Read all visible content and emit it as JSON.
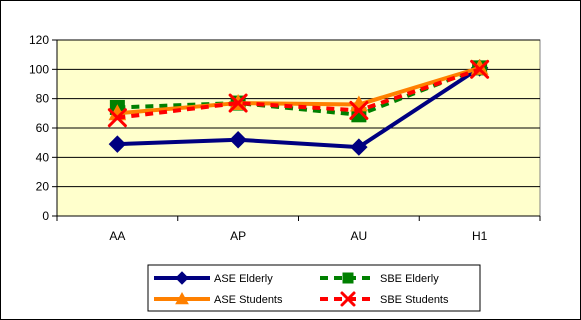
{
  "chart_data": {
    "type": "line",
    "title": "",
    "xlabel": "",
    "ylabel": "",
    "categories": [
      "AA",
      "AP",
      "AU",
      "H1"
    ],
    "ylim": [
      0,
      120
    ],
    "yticks": [
      0,
      20,
      40,
      60,
      80,
      100,
      120
    ],
    "grid": true,
    "legend_position": "bottom",
    "plot_background": "#ffffcc",
    "series": [
      {
        "name": "ASE Elderly",
        "values": [
          49,
          52,
          47,
          101
        ],
        "color": "#000080",
        "line": "solid",
        "marker": "diamond"
      },
      {
        "name": "SBE Elderly",
        "values": [
          74,
          77,
          69,
          101
        ],
        "color": "#008000",
        "line": "dashed",
        "marker": "square"
      },
      {
        "name": "ASE Students",
        "values": [
          70,
          77,
          76,
          101
        ],
        "color": "#ff8000",
        "line": "solid",
        "marker": "triangle"
      },
      {
        "name": "SBE Students",
        "values": [
          67,
          77,
          72,
          100
        ],
        "color": "#ff0000",
        "line": "dashed",
        "marker": "x"
      }
    ]
  }
}
